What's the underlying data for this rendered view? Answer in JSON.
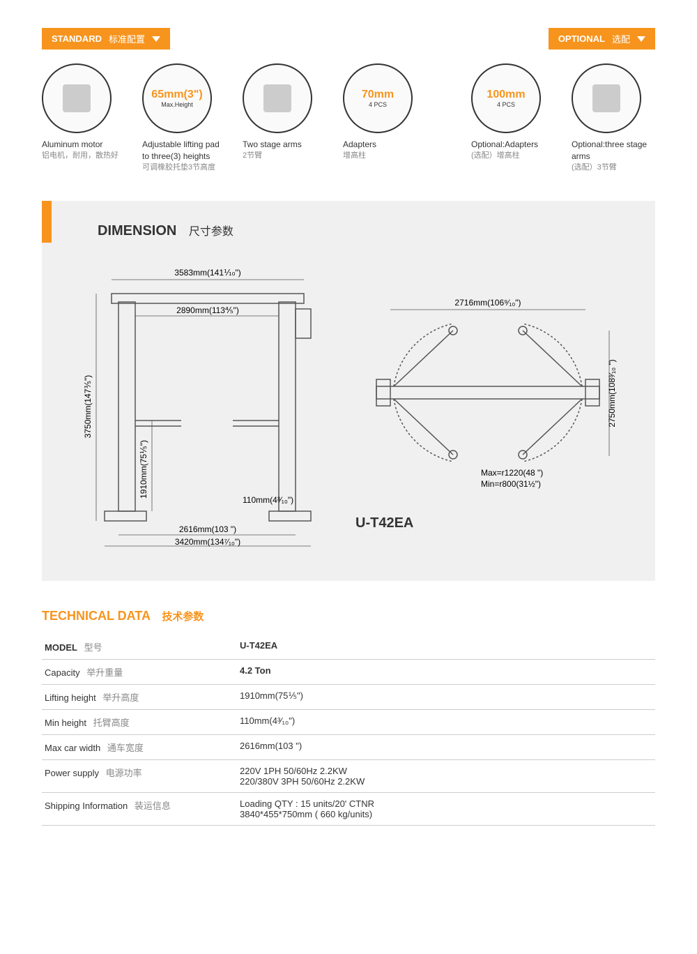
{
  "colors": {
    "accent": "#f7941d",
    "text": "#333333",
    "muted": "#888888",
    "bg_section": "#f0f0f0"
  },
  "badges": {
    "standard": {
      "en": "STANDARD",
      "cn": "标准配置"
    },
    "optional": {
      "en": "OPTIONAL",
      "cn": "选配"
    }
  },
  "features": {
    "standard": [
      {
        "title": "Aluminum motor",
        "sub": "铝电机，耐用，散热好",
        "circle_main": "",
        "circle_sub": ""
      },
      {
        "title": "Adjustable lifting pad to three(3) heights",
        "sub": "可调橡胶托垫3节高度",
        "circle_main": "65mm(3\")",
        "circle_sub": "Max.Height"
      },
      {
        "title": "Two stage arms",
        "sub": "2节臂",
        "circle_main": "",
        "circle_sub": ""
      },
      {
        "title": "Adapters",
        "sub": "增高柱",
        "circle_main": "70mm",
        "circle_sub": "4 PCS"
      }
    ],
    "optional": [
      {
        "title": "Optional:Adapters",
        "sub": "(选配）增高柱",
        "circle_main": "100mm",
        "circle_sub": "4 PCS"
      },
      {
        "title": "Optional:three stage arms",
        "sub": "(选配）3节臂",
        "circle_main": "",
        "circle_sub": ""
      }
    ]
  },
  "dimension": {
    "title_en": "DIMENSION",
    "title_cn": "尺寸参数",
    "model": "U-T42EA",
    "front": {
      "overall_w": "3583mm(141⅒\")",
      "inner_w": "2890mm(113⅘\")",
      "base_w": "2616mm(103 \")",
      "base_outer": "3420mm(134⁷⁄₁₀\")",
      "overall_h": "3750mm(147⅗\")",
      "lift_h": "1910mm(75⅕\")",
      "min_h": "110mm(4³⁄₁₀\")"
    },
    "top": {
      "span": "2716mm(106⁹⁄₁₀\")",
      "height": "2750mm(108³⁄₁₀ \")",
      "max_r": "Max=r1220(48 \")",
      "min_r": "Min=r800(31½\")"
    }
  },
  "technical": {
    "title_en": "TECHNICAL DATA",
    "title_cn": "技术参数",
    "rows": [
      {
        "label": "MODEL",
        "cn": "型号",
        "value": "U-T42EA",
        "bold": true,
        "label_bold": true
      },
      {
        "label": "Capacity",
        "cn": "举升重量",
        "value": "4.2 Ton",
        "bold": true
      },
      {
        "label": "Lifting height",
        "cn": "举升高度",
        "value": "1910mm(75⅕\")"
      },
      {
        "label": "Min height",
        "cn": "托臂高度",
        "value": "110mm(4³⁄₁₀\")"
      },
      {
        "label": "Max car width",
        "cn": "通车宽度",
        "value": "2616mm(103 \")"
      },
      {
        "label": "Power supply",
        "cn": "电源功率",
        "value": "220V 1PH 50/60Hz 2.2KW\n220/380V 3PH 50/60Hz 2.2KW"
      },
      {
        "label": "Shipping Information",
        "cn": "装运信息",
        "value": "Loading QTY : 15 units/20' CTNR\n3840*455*750mm ( 660 kg/units)"
      }
    ]
  }
}
